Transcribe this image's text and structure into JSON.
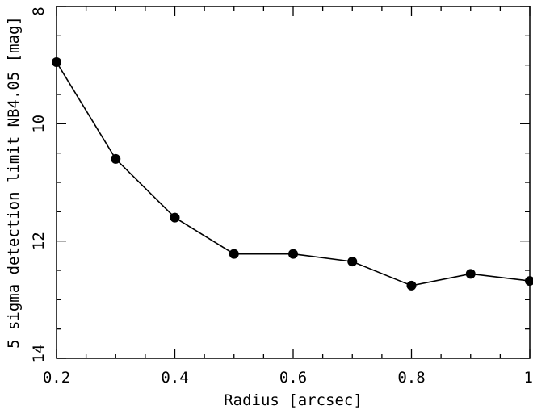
{
  "chart_data": {
    "type": "line",
    "title": "",
    "xlabel": "Radius [arcsec]",
    "ylabel": "5 sigma detection limit NB4.05 [mag]",
    "xlim": [
      0.2,
      1.0
    ],
    "ylim": [
      14,
      8
    ],
    "y_inverted": true,
    "grid": false,
    "legend": "none",
    "x_ticks": [
      "0.2",
      "0.4",
      "0.6",
      "0.8",
      "1"
    ],
    "y_ticks": [
      "8",
      "10",
      "12",
      "14"
    ],
    "series": [
      {
        "x": [
          0.2,
          0.3,
          0.4,
          0.5,
          0.6,
          0.7,
          0.8,
          0.9,
          1.0
        ],
        "y": [
          8.95,
          10.6,
          11.6,
          12.22,
          12.22,
          12.35,
          12.76,
          12.56,
          12.68
        ],
        "marker": "filled-circle",
        "color": "#000000"
      }
    ]
  }
}
